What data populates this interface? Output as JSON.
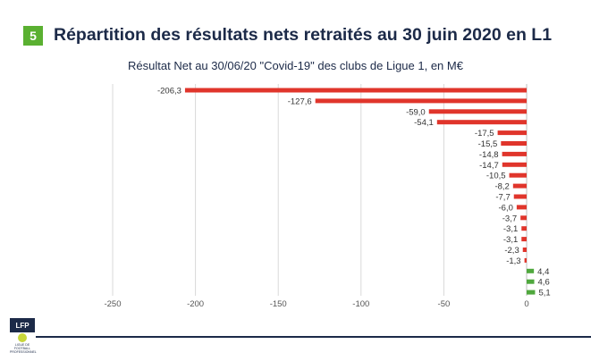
{
  "header": {
    "section_number": "5",
    "title": "Répartition des résultats nets retraités au 30 juin 2020 en L1"
  },
  "logo": {
    "abbrev": "LFP",
    "caption": "LIGUE DE FOOTBALL PROFESSIONNEL"
  },
  "colors": {
    "negative": "#e0352b",
    "positive": "#4fa83d",
    "badge": "#5ab031",
    "title": "#1c2a48",
    "grid": "#d9d9d9"
  },
  "chart_data": {
    "type": "bar",
    "orientation": "horizontal",
    "title": "Résultat Net au 30/06/20 \"Covid-19\" des clubs de Ligue 1, en M€",
    "values": [
      -206.3,
      -127.6,
      -59.0,
      -54.1,
      -17.5,
      -15.5,
      -14.8,
      -14.7,
      -10.5,
      -8.2,
      -7.7,
      -6.0,
      -3.7,
      -3.1,
      -3.1,
      -2.3,
      -1.3,
      4.4,
      4.6,
      5.1
    ],
    "labels": [
      "-206,3",
      "-127,6",
      "-59,0",
      "-54,1",
      "-17,5",
      "-15,5",
      "-14,8",
      "-14,7",
      "-10,5",
      "-8,2",
      "-7,7",
      "-6,0",
      "-3,7",
      "-3,1",
      "-3,1",
      "-2,3",
      "-1,3",
      "4,4",
      "4,6",
      "5,1"
    ],
    "xlim": [
      -250,
      0
    ],
    "xticks": [
      -250,
      -200,
      -150,
      -100,
      -50,
      0
    ],
    "xtick_labels": [
      "-250",
      "-200",
      "-150",
      "-100",
      "-50",
      "0"
    ],
    "grid": "vertical",
    "legend": "none"
  }
}
